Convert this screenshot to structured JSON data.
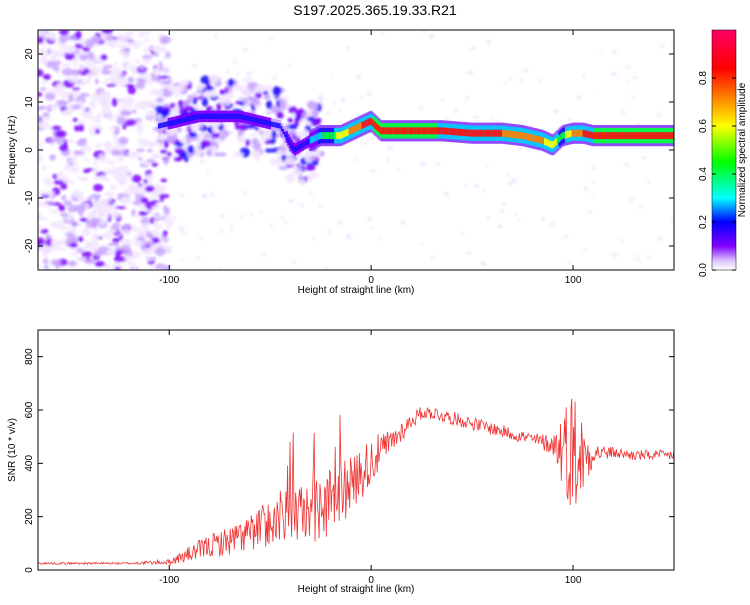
{
  "title": "S197.2025.365.19.33.R21",
  "chart_data": [
    {
      "type": "heatmap",
      "title": "S197.2025.365.19.33.R21",
      "xlabel": "Height of straight line (km)",
      "ylabel": "Frequency (Hz)",
      "xlim": [
        -165,
        150
      ],
      "ylim": [
        -25,
        25
      ],
      "xticks": [
        -100,
        0,
        100
      ],
      "yticks": [
        -20,
        -10,
        0,
        10,
        20
      ],
      "colorbar": {
        "label": "Normalized spectral amplitude",
        "range": [
          0,
          1
        ],
        "ticks": [
          0,
          0.2,
          0.4,
          0.6,
          0.8
        ],
        "colors": [
          "#ffffff",
          "#d9b3ff",
          "#8000ff",
          "#0000ff",
          "#00ffff",
          "#00ff00",
          "#ffff00",
          "#ff8000",
          "#ff0000",
          "#ff0066"
        ]
      },
      "ridge": {
        "x": [
          -105,
          -95,
          -85,
          -75,
          -65,
          -55,
          -45,
          -38,
          -30,
          -25,
          -20,
          -15,
          -10,
          -5,
          0,
          5,
          15,
          25,
          35,
          50,
          65,
          75,
          85,
          90,
          95,
          100,
          105,
          110,
          115,
          125,
          135,
          150
        ],
        "y": [
          5,
          6,
          7,
          7,
          7,
          6,
          5,
          0,
          2,
          3,
          3,
          3,
          4,
          5,
          6,
          4,
          4,
          4,
          4,
          3.5,
          3.5,
          3,
          2,
          1,
          3,
          3.5,
          3.5,
          3,
          3,
          3,
          3,
          3
        ],
        "amplitude": [
          0.25,
          0.3,
          0.3,
          0.3,
          0.3,
          0.3,
          0.25,
          0.3,
          0.35,
          0.5,
          0.6,
          0.7,
          0.8,
          0.9,
          0.9,
          0.95,
          0.95,
          0.95,
          0.9,
          0.9,
          0.9,
          0.8,
          0.8,
          0.7,
          0.6,
          0.8,
          0.9,
          0.9,
          0.95,
          0.95,
          0.95,
          0.95
        ]
      }
    },
    {
      "type": "line",
      "xlabel": "Height of straight line (km)",
      "ylabel": "SNR (10 * v/v)",
      "xlim": [
        -165,
        150
      ],
      "ylim": [
        0,
        900
      ],
      "xticks": [
        -100,
        0,
        100
      ],
      "yticks": [
        0,
        200,
        400,
        600,
        800
      ],
      "series": [
        {
          "name": "SNR",
          "color": "#ee3333",
          "x": [
            -165,
            -140,
            -120,
            -100,
            -90,
            -80,
            -70,
            -60,
            -50,
            -40,
            -30,
            -20,
            -10,
            0,
            10,
            20,
            25,
            30,
            40,
            50,
            60,
            70,
            80,
            90,
            95,
            100,
            105,
            110,
            120,
            130,
            140,
            150
          ],
          "y": [
            25,
            25,
            25,
            30,
            60,
            90,
            110,
            140,
            180,
            200,
            220,
            250,
            320,
            410,
            480,
            560,
            590,
            590,
            570,
            550,
            530,
            510,
            490,
            470,
            460,
            450,
            420,
            440,
            440,
            430,
            430,
            430
          ],
          "noise": [
            4,
            4,
            4,
            10,
            30,
            45,
            55,
            70,
            90,
            110,
            120,
            130,
            110,
            90,
            50,
            30,
            25,
            25,
            25,
            25,
            25,
            25,
            25,
            40,
            150,
            250,
            150,
            40,
            20,
            20,
            20,
            20
          ]
        }
      ]
    }
  ]
}
